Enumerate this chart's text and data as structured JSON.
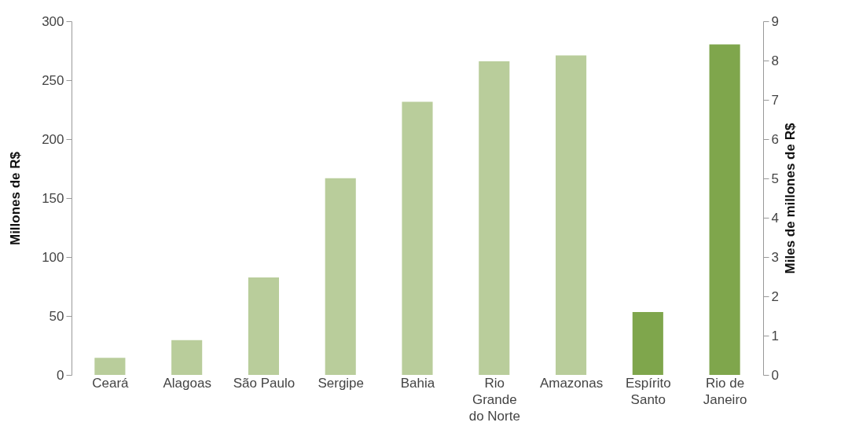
{
  "chart_data": {
    "type": "bar",
    "categories": [
      "Ceará",
      "Alagoas",
      "São Paulo",
      "Sergipe",
      "Bahia",
      "Rio Grande do Norte",
      "Amazonas",
      "Espírito Santo",
      "Rio de Janeiro"
    ],
    "series": [
      {
        "color": "#b9cd9b",
        "values": [
          14.5,
          29.5,
          82.6,
          166.8,
          231.7,
          266,
          271,
          null,
          null
        ]
      },
      {
        "color": "#7fa64c",
        "axis": "y2",
        "values": [
          null,
          null,
          null,
          null,
          null,
          null,
          null,
          1.6,
          8.41
        ]
      }
    ],
    "ylabel": "Millones de R$",
    "y2label": "Miles de millones de R$",
    "ylim": [
      0,
      300
    ],
    "yticks": [
      0,
      50,
      100,
      150,
      200,
      250,
      300
    ],
    "y2lim": [
      0,
      9
    ],
    "y2ticks": [
      0,
      1,
      2,
      3,
      4,
      5,
      6,
      7,
      8,
      9
    ],
    "grid": false
  }
}
